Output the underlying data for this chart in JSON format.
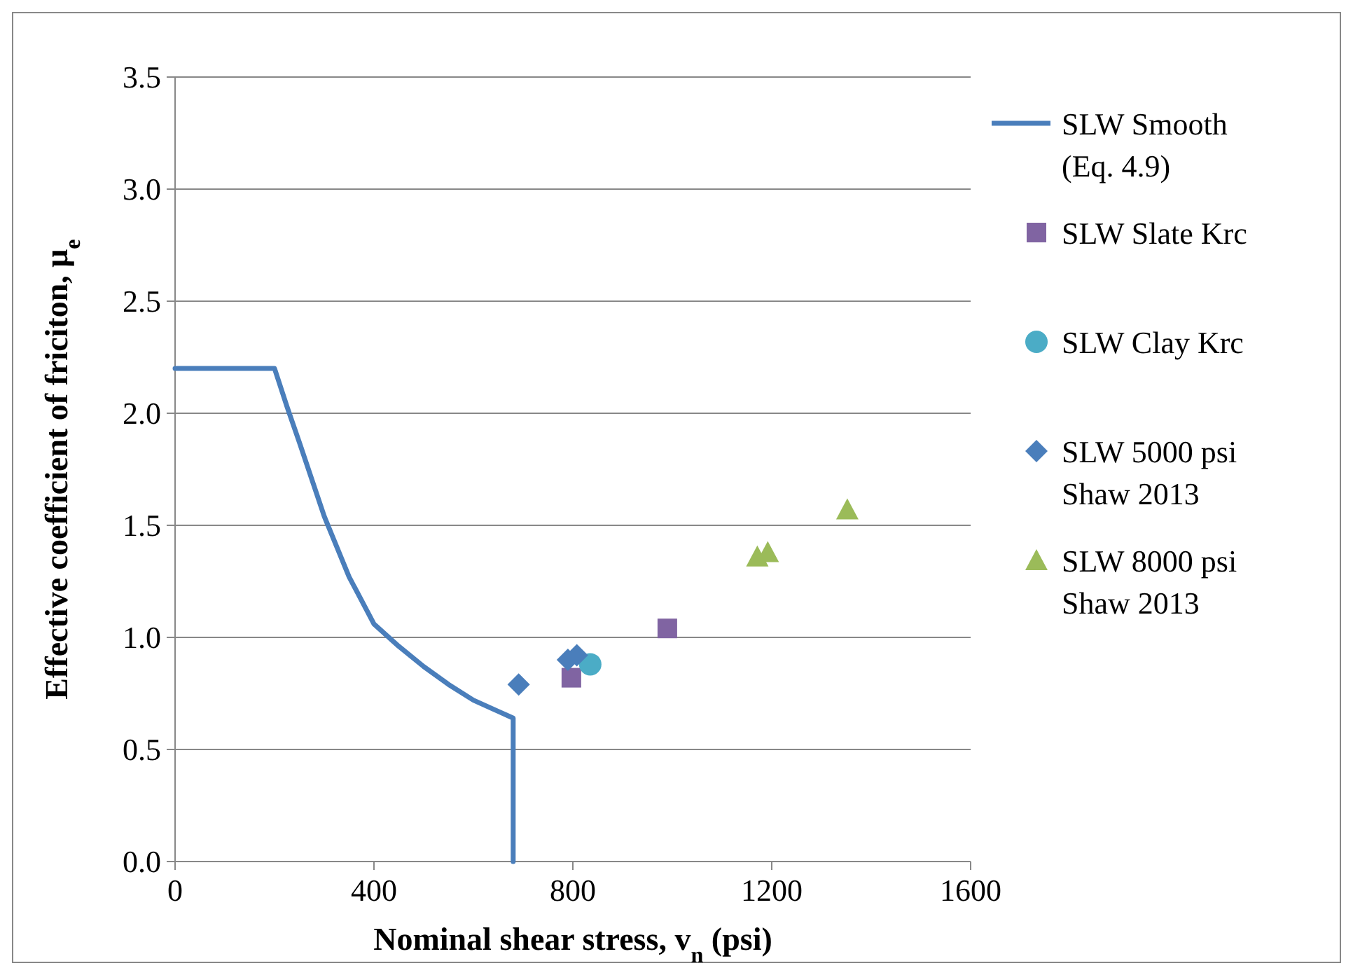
{
  "chart_data": {
    "type": "scatter",
    "xlabel": "Nominal shear stress, v$_{n}$ (psi)",
    "ylabel": "Effective coefficient of friciton, μ$_{e}$",
    "xlim": [
      0,
      1600
    ],
    "xticks": [
      0,
      400,
      800,
      1200,
      1600
    ],
    "ylim": [
      0,
      3.5
    ],
    "yticks": [
      {
        "value": 0,
        "label": "0.0"
      },
      {
        "value": 0.5,
        "label": "0.5"
      },
      {
        "value": 1,
        "label": "1.0"
      },
      {
        "value": 1.5,
        "label": "1.5"
      },
      {
        "value": 2,
        "label": "2.0"
      },
      {
        "value": 2.5,
        "label": "2.5"
      },
      {
        "value": 3,
        "label": "3.0"
      },
      {
        "value": 3.5,
        "label": "3.5"
      }
    ],
    "grid": "y",
    "legend": "right",
    "series": [
      {
        "name": "SLW Smooth (Eq. 4.9)",
        "type": "line",
        "color": "#4a7ebb",
        "marker": "none",
        "line_style": "solid",
        "x": [
          0,
          200,
          225,
          250,
          300,
          350,
          400,
          450,
          500,
          550,
          600,
          650,
          680,
          680
        ],
        "values": [
          2.2,
          2.2,
          2.03,
          1.87,
          1.54,
          1.27,
          1.06,
          0.96,
          0.87,
          0.79,
          0.72,
          0.67,
          0.64,
          0
        ]
      },
      {
        "name": "SLW Slate Krc",
        "color": "#8064a2",
        "marker": "square",
        "x": [
          797,
          990
        ],
        "values": [
          0.82,
          1.04
        ]
      },
      {
        "name": "SLW Clay Krc",
        "color": "#4bacc6",
        "marker": "circle",
        "x": [
          835
        ],
        "values": [
          0.88
        ]
      },
      {
        "name": "SLW 5000 psi Shaw 2013",
        "color": "#4a7ebb",
        "marker": "diamond",
        "x": [
          691,
          790,
          808
        ],
        "values": [
          0.79,
          0.9,
          0.92
        ]
      },
      {
        "name": "SLW 8000 psi Shaw 2013",
        "color": "#9bbb59",
        "marker": "triangle",
        "x": [
          1171,
          1192,
          1352
        ],
        "values": [
          1.36,
          1.38,
          1.57
        ]
      }
    ]
  }
}
